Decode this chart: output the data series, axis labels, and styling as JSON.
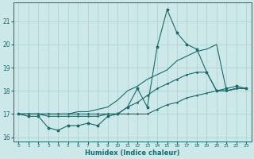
{
  "xlabel": "Humidex (Indice chaleur)",
  "x_values": [
    0,
    1,
    2,
    3,
    4,
    5,
    6,
    7,
    8,
    9,
    10,
    11,
    12,
    13,
    14,
    15,
    16,
    17,
    18,
    19,
    20,
    21,
    22,
    23
  ],
  "line_jagged": [
    17.0,
    16.9,
    16.9,
    16.4,
    16.3,
    16.5,
    16.5,
    16.6,
    16.5,
    16.9,
    17.0,
    17.3,
    18.1,
    17.3,
    19.9,
    21.5,
    20.5,
    20.0,
    19.8,
    18.8,
    18.0,
    18.1,
    18.2,
    18.1
  ],
  "line_upper": [
    17.0,
    17.0,
    17.0,
    17.0,
    17.0,
    17.0,
    17.1,
    17.1,
    17.2,
    17.3,
    17.6,
    18.0,
    18.2,
    18.5,
    18.7,
    18.9,
    19.3,
    19.5,
    19.7,
    19.8,
    20.0,
    18.0,
    18.1,
    18.1
  ],
  "line_mid": [
    17.0,
    17.0,
    17.0,
    17.0,
    17.0,
    17.0,
    17.0,
    17.0,
    17.0,
    17.0,
    17.0,
    17.3,
    17.5,
    17.8,
    18.1,
    18.3,
    18.5,
    18.7,
    18.8,
    18.8,
    18.0,
    18.0,
    18.1,
    18.1
  ],
  "line_lower": [
    17.0,
    17.0,
    17.0,
    16.9,
    16.9,
    16.9,
    16.9,
    16.9,
    16.9,
    17.0,
    17.0,
    17.0,
    17.0,
    17.0,
    17.2,
    17.4,
    17.5,
    17.7,
    17.8,
    17.9,
    18.0,
    18.0,
    18.1,
    18.1
  ],
  "ylim": [
    15.8,
    21.8
  ],
  "xlim": [
    -0.5,
    23.5
  ],
  "yticks": [
    16,
    17,
    18,
    19,
    20,
    21
  ],
  "xticks": [
    0,
    1,
    2,
    3,
    4,
    5,
    6,
    7,
    8,
    9,
    10,
    11,
    12,
    13,
    14,
    15,
    16,
    17,
    18,
    19,
    20,
    21,
    22,
    23
  ],
  "line_color": "#1a6b6b",
  "bg_color": "#cce8e8",
  "grid_color": "#aacfcf",
  "figsize": [
    3.2,
    2.0
  ],
  "dpi": 100
}
